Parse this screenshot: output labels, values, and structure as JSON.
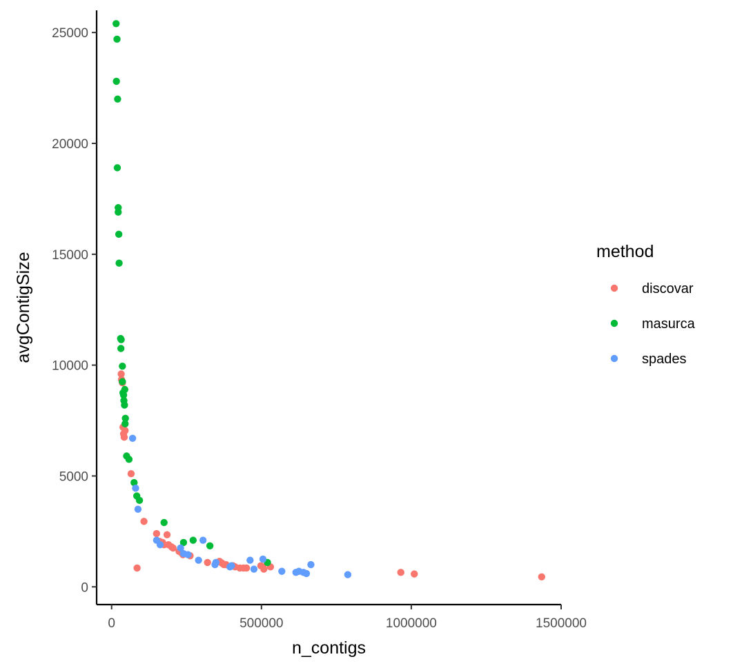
{
  "chart_data": {
    "type": "scatter",
    "title": "",
    "xlabel": "n_contigs",
    "ylabel": "avgContigSize",
    "xlim": [
      -50000,
      1500000
    ],
    "ylim": [
      -800,
      26000
    ],
    "x_ticks": [
      0,
      500000,
      1000000,
      1500000
    ],
    "x_tick_labels": [
      "0",
      "500000",
      "1000000",
      "1500000"
    ],
    "y_ticks": [
      0,
      5000,
      10000,
      15000,
      20000,
      25000
    ],
    "y_tick_labels": [
      "0",
      "5000",
      "10000",
      "15000",
      "20000",
      "25000"
    ],
    "grid": false,
    "legend": {
      "title": "method",
      "position": "right"
    },
    "series": [
      {
        "name": "discovar",
        "color": "#F8766D",
        "points": [
          [
            32000,
            9600
          ],
          [
            33000,
            9350
          ],
          [
            36000,
            9200
          ],
          [
            38000,
            7200
          ],
          [
            40000,
            6900
          ],
          [
            42000,
            6750
          ],
          [
            45000,
            7050
          ],
          [
            65000,
            5100
          ],
          [
            85000,
            850
          ],
          [
            108000,
            2950
          ],
          [
            150000,
            2400
          ],
          [
            160000,
            2050
          ],
          [
            170000,
            2000
          ],
          [
            175000,
            1900
          ],
          [
            185000,
            2350
          ],
          [
            190000,
            1900
          ],
          [
            200000,
            1800
          ],
          [
            205000,
            1750
          ],
          [
            225000,
            1600
          ],
          [
            232000,
            1550
          ],
          [
            238000,
            1450
          ],
          [
            262000,
            1400
          ],
          [
            320000,
            1100
          ],
          [
            360000,
            1150
          ],
          [
            365000,
            1100
          ],
          [
            370000,
            1050
          ],
          [
            375000,
            1000
          ],
          [
            382000,
            1000
          ],
          [
            405000,
            950
          ],
          [
            412000,
            900
          ],
          [
            428000,
            850
          ],
          [
            440000,
            850
          ],
          [
            450000,
            850
          ],
          [
            498000,
            950
          ],
          [
            505000,
            900
          ],
          [
            508000,
            800
          ],
          [
            530000,
            900
          ],
          [
            965000,
            650
          ],
          [
            1010000,
            580
          ],
          [
            1435000,
            450
          ]
        ]
      },
      {
        "name": "masurca",
        "color": "#00BA38",
        "points": [
          [
            15000,
            25400
          ],
          [
            18000,
            24700
          ],
          [
            16000,
            22800
          ],
          [
            20000,
            22000
          ],
          [
            19000,
            18900
          ],
          [
            22000,
            17100
          ],
          [
            22000,
            16900
          ],
          [
            24000,
            15900
          ],
          [
            25000,
            14600
          ],
          [
            30000,
            11200
          ],
          [
            32000,
            11150
          ],
          [
            31000,
            10750
          ],
          [
            36000,
            9950
          ],
          [
            36000,
            9250
          ],
          [
            38000,
            8750
          ],
          [
            40000,
            8650
          ],
          [
            41000,
            8400
          ],
          [
            44000,
            8900
          ],
          [
            43000,
            8200
          ],
          [
            46000,
            7600
          ],
          [
            45000,
            7350
          ],
          [
            50000,
            5900
          ],
          [
            58000,
            5750
          ],
          [
            75000,
            4700
          ],
          [
            84000,
            4100
          ],
          [
            93000,
            3900
          ],
          [
            175000,
            2900
          ],
          [
            240000,
            2000
          ],
          [
            272000,
            2100
          ],
          [
            328000,
            1850
          ],
          [
            520000,
            1100
          ]
        ]
      },
      {
        "name": "spades",
        "color": "#619CFF",
        "points": [
          [
            70000,
            6700
          ],
          [
            80000,
            4450
          ],
          [
            88000,
            3500
          ],
          [
            150000,
            2100
          ],
          [
            162000,
            1900
          ],
          [
            230000,
            1750
          ],
          [
            240000,
            1500
          ],
          [
            255000,
            1450
          ],
          [
            290000,
            1200
          ],
          [
            305000,
            2100
          ],
          [
            345000,
            1000
          ],
          [
            348000,
            1100
          ],
          [
            395000,
            900
          ],
          [
            400000,
            950
          ],
          [
            462000,
            1200
          ],
          [
            475000,
            800
          ],
          [
            505000,
            1250
          ],
          [
            568000,
            700
          ],
          [
            615000,
            650
          ],
          [
            625000,
            700
          ],
          [
            640000,
            650
          ],
          [
            650000,
            600
          ],
          [
            665000,
            1000
          ],
          [
            788000,
            550
          ]
        ]
      }
    ]
  }
}
